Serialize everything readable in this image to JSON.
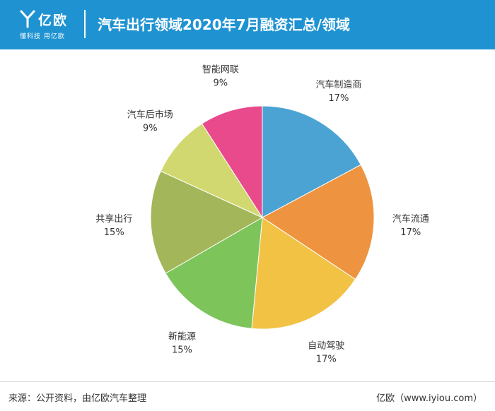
{
  "header": {
    "logo_name": "亿欧",
    "logo_slogan": "懂科技 用亿欧",
    "title": "汽车出行领域2020年7月融资汇总/领域"
  },
  "colors": {
    "header_bg": "#1f93d2",
    "slices": [
      "#4ba3d4",
      "#ee9340",
      "#f2c244",
      "#7dc45a",
      "#a3b75a",
      "#d1d86f",
      "#e84a8c"
    ]
  },
  "chart_data": {
    "type": "pie",
    "title": "",
    "start_angle_deg": 0,
    "direction": "clockwise",
    "slices": [
      {
        "label": "汽车制造商",
        "value": 17,
        "value_label": "17%"
      },
      {
        "label": "汽车流通",
        "value": 17,
        "value_label": "17%"
      },
      {
        "label": "自动驾驶",
        "value": 17,
        "value_label": "17%"
      },
      {
        "label": "新能源",
        "value": 15,
        "value_label": "15%"
      },
      {
        "label": "共享出行",
        "value": 15,
        "value_label": "15%"
      },
      {
        "label": "汽车后市场",
        "value": 9,
        "value_label": "9%"
      },
      {
        "label": "智能网联",
        "value": 9,
        "value_label": "9%"
      }
    ]
  },
  "footer": {
    "source": "来源：公开资料，由亿欧汽车整理",
    "brand": "亿欧（www.iyiou.com）"
  }
}
